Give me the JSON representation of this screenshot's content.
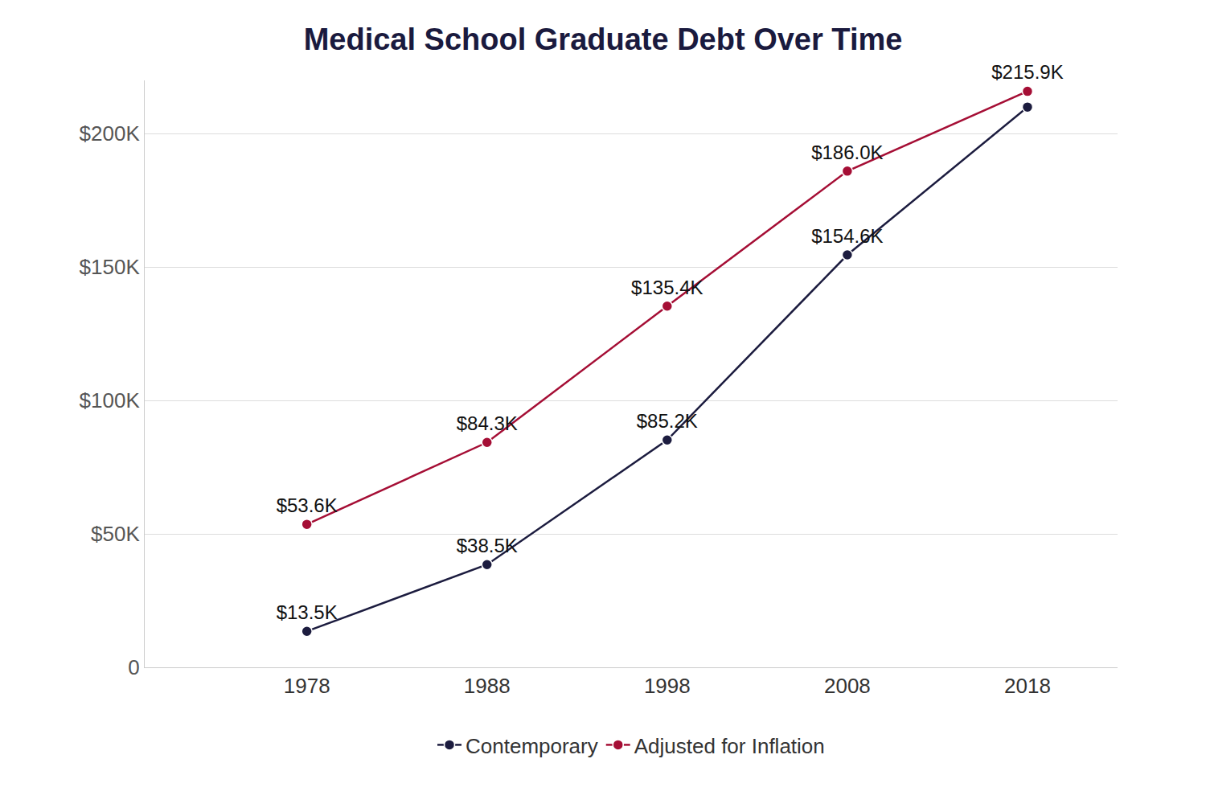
{
  "chart_data": {
    "type": "line",
    "title": "Medical School Graduate Debt Over Time",
    "x": [
      1978,
      1988,
      1998,
      2008,
      2018
    ],
    "xlim": [
      1969,
      2023
    ],
    "xticks": [
      1978,
      1988,
      1998,
      2008,
      2018
    ],
    "ylim": [
      0,
      220
    ],
    "yticks": [
      0,
      {
        "value": 50,
        "label": "$50K"
      },
      {
        "value": 100,
        "label": "$100K"
      },
      {
        "value": 150,
        "label": "$150K"
      },
      {
        "value": 200,
        "label": "$200K"
      }
    ],
    "grid": true,
    "legend": "bottom",
    "data_labels": true,
    "series": [
      {
        "name": "Contemporary",
        "color": "#1c1c3f",
        "marker": "circle",
        "values": [
          13.5,
          38.5,
          85.2,
          154.6,
          210
        ],
        "value_labels": [
          "$13.5K",
          "$38.5K",
          "$85.2K",
          "$154.6K",
          null
        ]
      },
      {
        "name": "Adjusted for Inflation",
        "color": "#a50e35",
        "marker": "circle",
        "values": [
          53.6,
          84.3,
          135.4,
          186.0,
          215.9
        ],
        "value_labels": [
          "$53.6K",
          "$84.3K",
          "$135.4K",
          "$186.0K",
          "$215.9K"
        ]
      }
    ]
  }
}
